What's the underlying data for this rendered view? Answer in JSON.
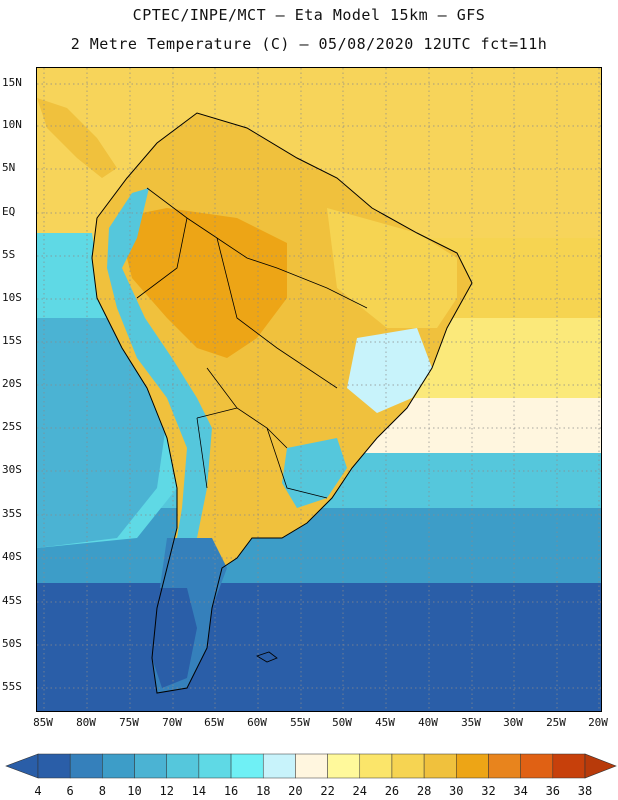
{
  "header": {
    "line1": "CPTEC/INPE/MCT –  Eta Model 15km – GFS",
    "line2": "2 Metre Temperature (C) – 05/08/2020 12UTC fct=11h"
  },
  "axes": {
    "lat_labels": [
      "15N",
      "10N",
      "5N",
      "EQ",
      "5S",
      "10S",
      "15S",
      "20S",
      "25S",
      "30S",
      "35S",
      "40S",
      "45S",
      "50S",
      "55S"
    ],
    "lon_labels": [
      "85W",
      "80W",
      "75W",
      "70W",
      "65W",
      "60W",
      "55W",
      "50W",
      "45W",
      "40W",
      "35W",
      "30W",
      "25W",
      "20W"
    ]
  },
  "colorbar": {
    "labels": [
      "4",
      "6",
      "8",
      "10",
      "12",
      "14",
      "16",
      "18",
      "20",
      "22",
      "24",
      "26",
      "28",
      "30",
      "32",
      "34",
      "36",
      "38"
    ],
    "colors": [
      "#2a5ea8",
      "#3580bb",
      "#3d9dc8",
      "#4bb3d3",
      "#55c7dc",
      "#5fd9e5",
      "#6ff0f5",
      "#c8f3fb",
      "#fff6df",
      "#fff99b",
      "#fbe56a",
      "#f6d452",
      "#f0c13d",
      "#eda516",
      "#e8841d",
      "#e06114",
      "#c7400b"
    ],
    "left_arrow_color": "#2a5ea8",
    "right_arrow_color": "#b83a0a"
  },
  "map": {
    "ocean_colors": {
      "north_warm": "#f7d45a",
      "equatorial": "#f6d451",
      "tropical_south": "#fbe97a",
      "subtropical": "#fff6df",
      "mid": "#55c7dc",
      "cool": "#3d9dc8",
      "cold": "#2a5ea8",
      "pacific_north": "#5fd9e5",
      "pacific_mid": "#4bb3d3"
    },
    "land_colors": {
      "hot": "#eda516",
      "warm": "#f0c13d",
      "mild": "#f6d452",
      "andes_cool": "#55c7dc",
      "andes_cold": "#2a5ea8",
      "patagonia": "#3580bb",
      "highland": "#c8f3fb"
    }
  }
}
